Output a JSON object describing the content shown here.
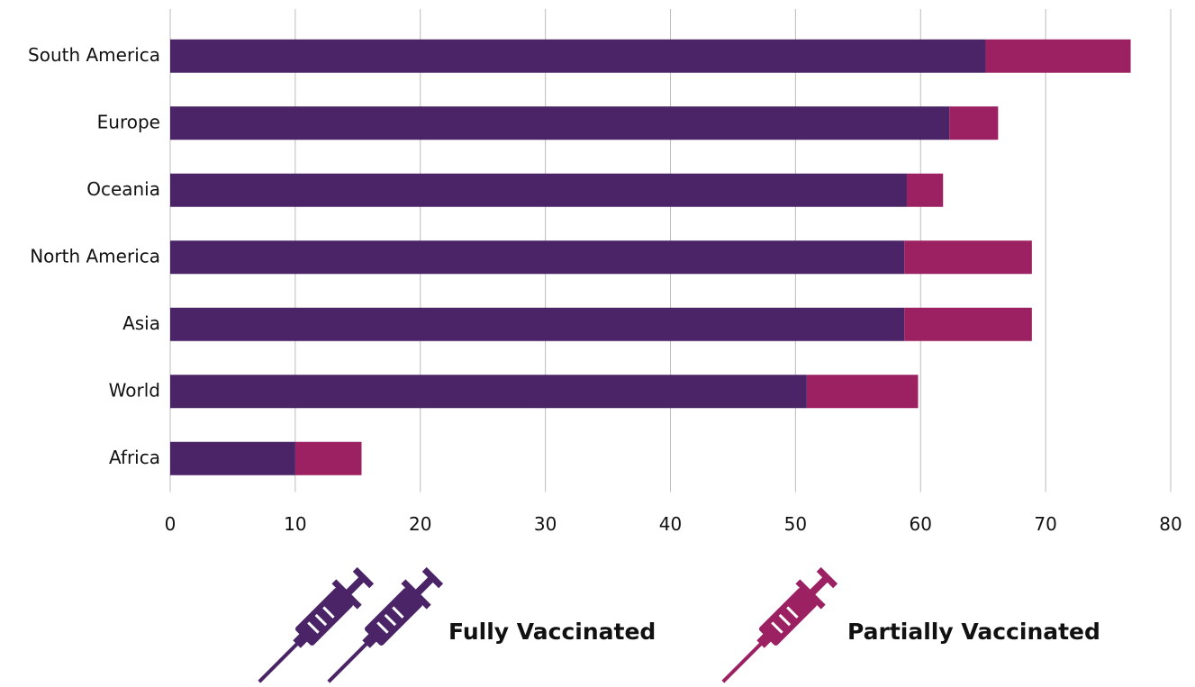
{
  "chart_data": {
    "type": "stacked-barh",
    "categories": [
      "South America",
      "Europe",
      "Oceania",
      "North America",
      "Asia",
      "World",
      "Africa"
    ],
    "series": [
      {
        "name": "Fully Vaccinated",
        "color": "#4a2466",
        "values": [
          65.2,
          62.3,
          58.9,
          58.7,
          58.7,
          50.9,
          10.0
        ]
      },
      {
        "name": "Partially Vaccinated",
        "color": "#9c2162",
        "values": [
          11.6,
          3.9,
          2.9,
          10.2,
          10.2,
          8.9,
          5.3
        ]
      }
    ],
    "xlim": [
      0,
      80
    ],
    "xticks": [
      0,
      10,
      20,
      30,
      40,
      50,
      60,
      70,
      80
    ],
    "grid": true
  }
}
